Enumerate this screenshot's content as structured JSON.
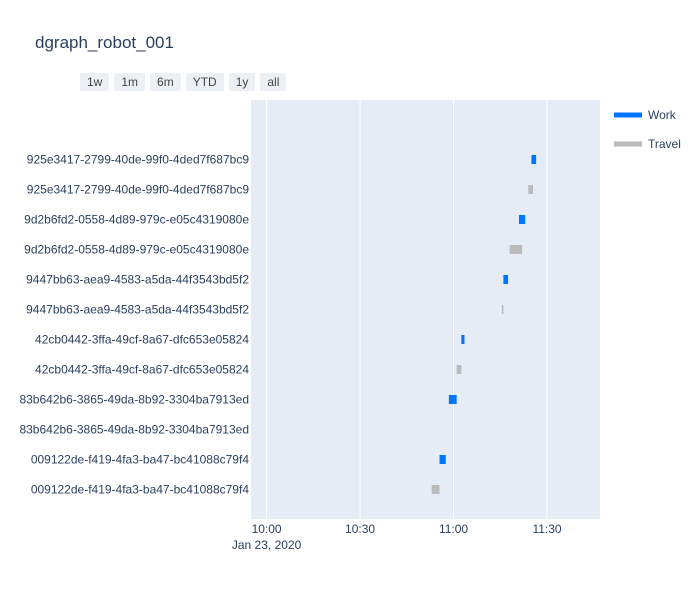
{
  "title": "dgraph_robot_001",
  "range_buttons": [
    "1w",
    "1m",
    "6m",
    "YTD",
    "1y",
    "all"
  ],
  "colors": {
    "work": "#0075ff",
    "travel": "#bbbbbb",
    "plot_bg": "#e5ecf6",
    "grid": "#ffffff",
    "text": "#2a3f5f"
  },
  "chart_data": {
    "type": "timeline",
    "title": "dgraph_robot_001",
    "x_axis": {
      "type": "date",
      "range": [
        "2020-01-23 09:55",
        "2020-01-23 11:47"
      ],
      "tick_labels": [
        "10:00",
        "10:30",
        "11:00",
        "11:30"
      ],
      "tick_values": [
        "2020-01-23 10:00",
        "2020-01-23 10:30",
        "2020-01-23 11:00",
        "2020-01-23 11:30"
      ],
      "date_label": "Jan 23, 2020"
    },
    "grid": true,
    "legend": {
      "position": "top-right",
      "entries": [
        "Work",
        "Travel"
      ]
    },
    "rows": [
      "925e3417-2799-40de-99f0-4ded7f687bc9",
      "925e3417-2799-40de-99f0-4ded7f687bc9",
      "9d2b6fd2-0558-4d89-979c-e05c4319080e",
      "9d2b6fd2-0558-4d89-979c-e05c4319080e",
      "9447bb63-aea9-4583-a5da-44f3543bd5f2",
      "9447bb63-aea9-4583-a5da-44f3543bd5f2",
      "42cb0442-3ffa-49cf-8a67-dfc653e05824",
      "42cb0442-3ffa-49cf-8a67-dfc653e05824",
      "83b642b6-3865-49da-8b92-3304ba7913ed",
      "83b642b6-3865-49da-8b92-3304ba7913ed",
      "009122de-f419-4fa3-ba47-bc41088c79f4",
      "009122de-f419-4fa3-ba47-bc41088c79f4"
    ],
    "tasks": [
      {
        "row": 0,
        "type": "Work",
        "start": "2020-01-23 11:25:00",
        "end": "2020-01-23 11:26:30"
      },
      {
        "row": 1,
        "type": "Travel",
        "start": "2020-01-23 11:24:00",
        "end": "2020-01-23 11:25:30"
      },
      {
        "row": 2,
        "type": "Work",
        "start": "2020-01-23 11:21:00",
        "end": "2020-01-23 11:23:00"
      },
      {
        "row": 3,
        "type": "Travel",
        "start": "2020-01-23 11:18:00",
        "end": "2020-01-23 11:22:00"
      },
      {
        "row": 4,
        "type": "Work",
        "start": "2020-01-23 11:16:00",
        "end": "2020-01-23 11:17:30"
      },
      {
        "row": 5,
        "type": "Travel",
        "start": "2020-01-23 11:15:30",
        "end": "2020-01-23 11:16:00"
      },
      {
        "row": 6,
        "type": "Work",
        "start": "2020-01-23 11:02:30",
        "end": "2020-01-23 11:03:30"
      },
      {
        "row": 7,
        "type": "Travel",
        "start": "2020-01-23 11:01:00",
        "end": "2020-01-23 11:02:30"
      },
      {
        "row": 8,
        "type": "Work",
        "start": "2020-01-23 10:58:30",
        "end": "2020-01-23 11:01:00"
      },
      {
        "row": 10,
        "type": "Work",
        "start": "2020-01-23 10:55:30",
        "end": "2020-01-23 10:57:30"
      },
      {
        "row": 11,
        "type": "Travel",
        "start": "2020-01-23 10:53:00",
        "end": "2020-01-23 10:55:30"
      }
    ]
  }
}
